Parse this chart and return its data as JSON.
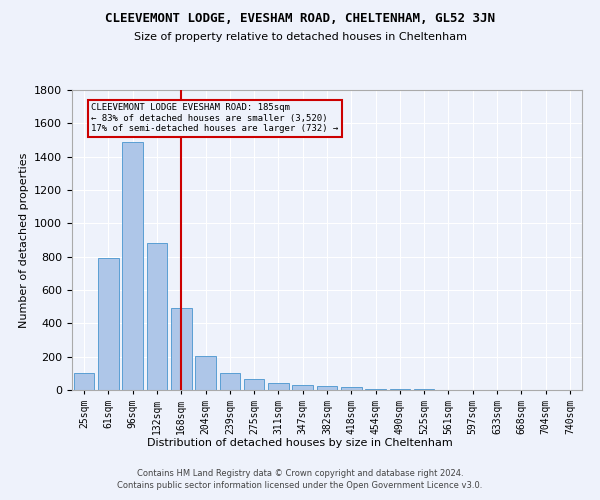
{
  "title": "CLEEVEMONT LODGE, EVESHAM ROAD, CHELTENHAM, GL52 3JN",
  "subtitle": "Size of property relative to detached houses in Cheltenham",
  "xlabel": "Distribution of detached houses by size in Cheltenham",
  "ylabel": "Number of detached properties",
  "footer1": "Contains HM Land Registry data © Crown copyright and database right 2024.",
  "footer2": "Contains public sector information licensed under the Open Government Licence v3.0.",
  "categories": [
    "25sqm",
    "61sqm",
    "96sqm",
    "132sqm",
    "168sqm",
    "204sqm",
    "239sqm",
    "275sqm",
    "311sqm",
    "347sqm",
    "382sqm",
    "418sqm",
    "454sqm",
    "490sqm",
    "525sqm",
    "561sqm",
    "597sqm",
    "633sqm",
    "668sqm",
    "704sqm",
    "740sqm"
  ],
  "values": [
    100,
    790,
    1490,
    880,
    490,
    205,
    100,
    65,
    40,
    30,
    25,
    20,
    8,
    5,
    4,
    3,
    2,
    2,
    1,
    1,
    1
  ],
  "bar_color": "#aec6e8",
  "bar_edge_color": "#5a9fd4",
  "annotation_line_color": "#cc0000",
  "annotation_box_text": "CLEEVEMONT LODGE EVESHAM ROAD: 185sqm\n← 83% of detached houses are smaller (3,520)\n17% of semi-detached houses are larger (732) →",
  "annotation_box_color": "#cc0000",
  "ylim": [
    0,
    1800
  ],
  "yticks": [
    0,
    200,
    400,
    600,
    800,
    1000,
    1200,
    1400,
    1600,
    1800
  ],
  "background_color": "#eef2fb",
  "grid_color": "#ffffff"
}
